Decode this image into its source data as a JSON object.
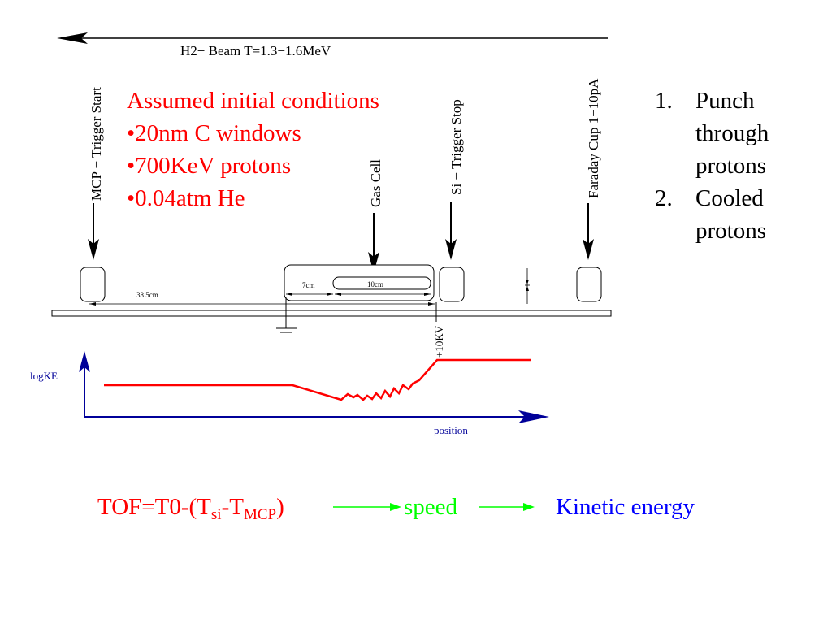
{
  "diagram": {
    "beam_label": "H2+ Beam T=1.3−1.6MeV",
    "detectors": {
      "mcp": "MCP − Trigger Start",
      "gas_cell": "Gas Cell",
      "si": "Si − Trigger Stop",
      "faraday": "Faraday Cup 1−10pA"
    },
    "dimensions": {
      "mcp_distance": "38.5cm",
      "gap": "7cm",
      "cell_length": "10cm",
      "voltage": "+10KV"
    },
    "plot": {
      "ylabel": "logKE",
      "xlabel": "position"
    }
  },
  "conditions": {
    "heading": "Assumed initial conditions",
    "items": [
      "•20nm C windows",
      "•700KeV protons",
      "•0.04atm He"
    ]
  },
  "numbered_list": [
    {
      "num": "1.",
      "lines": [
        "Punch",
        "through",
        "protons"
      ]
    },
    {
      "num": "2.",
      "lines": [
        "Cooled",
        "protons"
      ]
    }
  ],
  "formula": {
    "tof_prefix": "TOF=T0-(T",
    "si_sub": "si",
    "dash": "-T",
    "mcp_sub": "MCP",
    "close": ")",
    "speed": "speed",
    "kinetic": "Kinetic energy"
  },
  "colors": {
    "red": "#ff0000",
    "green": "#00ff00",
    "blue": "#0000ff",
    "navy": "#000099"
  }
}
